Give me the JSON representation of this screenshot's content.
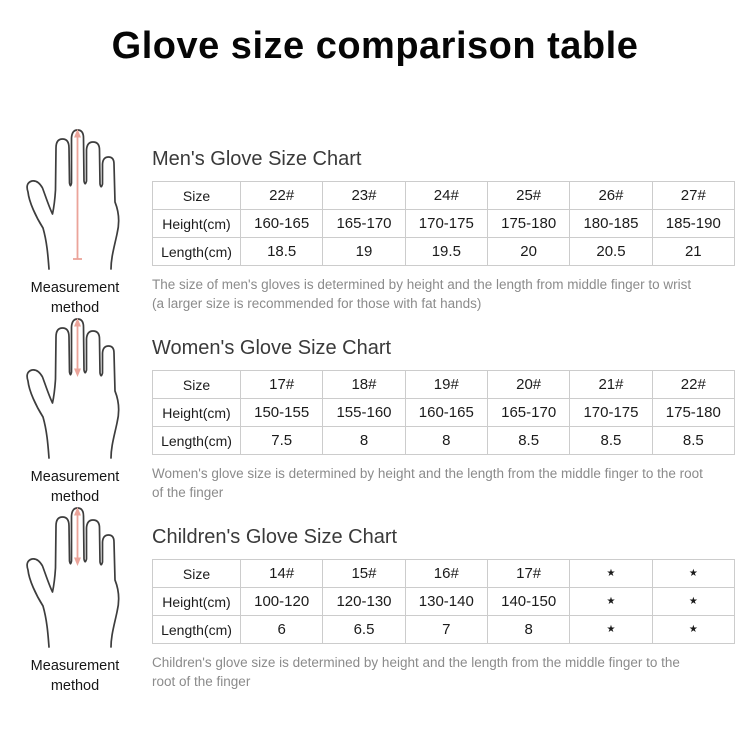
{
  "title": "Glove size comparison table",
  "colors": {
    "measure_line": "#eba49a",
    "table_border": "#cccccc",
    "description_text": "#8b8b8b",
    "heading_text": "#3a3a3a"
  },
  "icons": {
    "hand_full_measure": "hand-outline-with-fingertip-to-wrist-arrow",
    "hand_finger_measure": "hand-outline-with-fingertip-to-finger-root-arrow"
  },
  "sections": [
    {
      "heading": "Men's Glove Size Chart",
      "measurement_label": "Measurement method",
      "description": "The size of men's gloves is determined by height and the length from middle finger to wrist (a larger size is recommended for those with fat hands)",
      "table": {
        "rows": [
          {
            "label": "Size",
            "values": [
              "22#",
              "23#",
              "24#",
              "25#",
              "26#",
              "27#"
            ]
          },
          {
            "label": "Height(cm)",
            "values": [
              "160-165",
              "165-170",
              "170-175",
              "175-180",
              "180-185",
              "185-190"
            ]
          },
          {
            "label": "Length(cm)",
            "values": [
              "18.5",
              "19",
              "19.5",
              "20",
              "20.5",
              "21"
            ]
          }
        ]
      }
    },
    {
      "heading": "Women's Glove Size Chart",
      "measurement_label": "Measurement method",
      "description": "Women's glove size is determined by height and the length from the middle finger to the root of the finger",
      "table": {
        "rows": [
          {
            "label": "Size",
            "values": [
              "17#",
              "18#",
              "19#",
              "20#",
              "21#",
              "22#"
            ]
          },
          {
            "label": "Height(cm)",
            "values": [
              "150-155",
              "155-160",
              "160-165",
              "165-170",
              "170-175",
              "175-180"
            ]
          },
          {
            "label": "Length(cm)",
            "values": [
              "7.5",
              "8",
              "8",
              "8.5",
              "8.5",
              "8.5"
            ]
          }
        ]
      }
    },
    {
      "heading": "Children's Glove Size Chart",
      "measurement_label": "Measurement method",
      "description": "Children's glove size is determined by height and the length from the middle finger to the root of the finger",
      "table": {
        "rows": [
          {
            "label": "Size",
            "values": [
              "14#",
              "15#",
              "16#",
              "17#",
              "★",
              "★"
            ]
          },
          {
            "label": "Height(cm)",
            "values": [
              "100-120",
              "120-130",
              "130-140",
              "140-150",
              "★",
              "★"
            ]
          },
          {
            "label": "Length(cm)",
            "values": [
              "6",
              "6.5",
              "7",
              "8",
              "★",
              "★"
            ]
          }
        ]
      }
    }
  ]
}
